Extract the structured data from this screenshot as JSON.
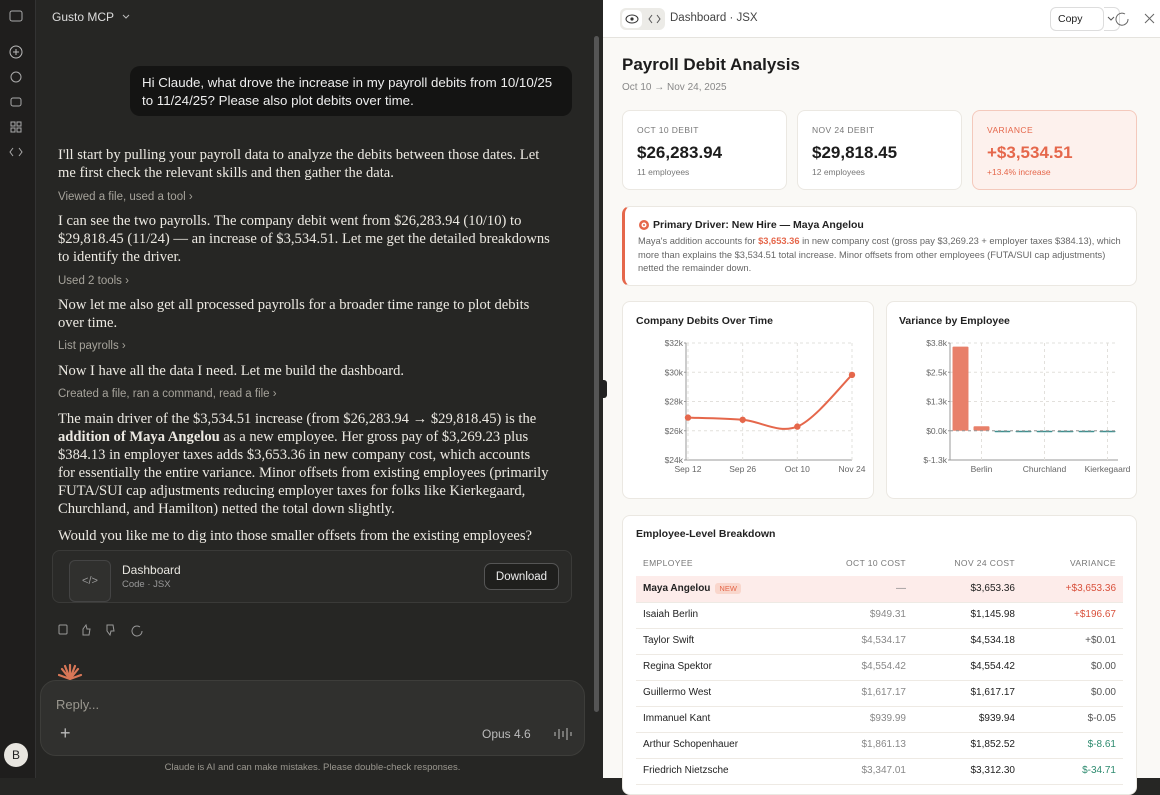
{
  "chat": {
    "workspace": "Gusto MCP",
    "user_message": "Hi Claude, what drove the increase in my payroll debits from 10/10/25 to 11/24/25? Please also plot debits over time.",
    "p1": "I'll start by pulling your payroll data to analyze the debits between those dates. Let me first check the relevant skills and then gather the data.",
    "step1": "Viewed a file, used a tool",
    "p2": "I can see the two payrolls. The company debit went from $26,283.94 (10/10) to $29,818.45 (11/24) — an increase of $3,534.51. Let me get the detailed breakdowns to identify the driver.",
    "step2": "Used 2 tools",
    "p3": "Now let me also get all processed payrolls for a broader time range to plot debits over time.",
    "step3": "List payrolls",
    "p4": "Now I have all the data I need. Let me build the dashboard.",
    "step4": "Created a file, ran a command, read a file",
    "p5": {
      "text_before": "The main driver of the $3,534.51 increase (from $26,283.94 → $29,818.45) is the ",
      "bold": "addition of Maya Angelou",
      "text_after": " as a new employee. Her gross pay of $3,269.23 plus $384.13 in employer taxes adds $3,653.36 in new company cost, which accounts for essentially the entire variance. Minor offsets from existing employees (primarily FUTA/SUI cap adjustments reducing employer taxes for folks like Kierkegaard, Churchland, and Hamilton) netted the total down slightly."
    },
    "p6": "Would you like me to dig into those smaller offsets from the existing employees?",
    "artifact": {
      "title": "Dashboard",
      "subtitle": "Code · JSX",
      "button": "Download"
    },
    "input": {
      "placeholder": "Reply...",
      "model": "Opus 4.6"
    },
    "disclaimer": "Claude is AI and can make mistakes. Please double-check responses.",
    "avatar": "B"
  },
  "artifact_panel": {
    "title": "Dashboard · JSX",
    "copy": "Copy"
  },
  "dashboard": {
    "title": "Payroll Debit Analysis",
    "subtitle": "Oct 10 → Nov 24, 2025",
    "kpis": [
      {
        "label": "OCT 10 DEBIT",
        "value": "$26,283.94",
        "note": "11 employees"
      },
      {
        "label": "NOV 24 DEBIT",
        "value": "$29,818.45",
        "note": "12 employees"
      },
      {
        "label": "VARIANCE",
        "value": "+$3,534.51",
        "note": "+13.4% increase",
        "highlight": true
      }
    ],
    "driver": {
      "title": "Primary Driver: New Hire — Maya Angelou",
      "text_before": "Maya's addition accounts for ",
      "highlight": "$3,653.36",
      "text_after": " in new company cost (gross pay $3,269.23 + employer taxes $384.13), which more than explains the $3,534.51 total increase. Minor offsets from other employees (FUTA/SUI cap adjustments) netted the remainder down."
    },
    "table": {
      "title": "Employee-Level Breakdown",
      "headers": [
        "EMPLOYEE",
        "OCT 10 COST",
        "NOV 24 COST",
        "VARIANCE"
      ],
      "rows": [
        {
          "employee": "Maya Angelou",
          "badge": "NEW",
          "oct_10": "—",
          "nov_24": "$3,653.36",
          "variance": "+$3,653.36",
          "variance_color": "#d9513c"
        },
        {
          "employee": "Isaiah Berlin",
          "oct_10": "$949.31",
          "nov_24": "$1,145.98",
          "variance": "+$196.67",
          "variance_color": "#d9513c"
        },
        {
          "employee": "Taylor Swift",
          "oct_10": "$4,534.17",
          "nov_24": "$4,534.18",
          "variance": "+$0.01",
          "variance_color": "#555555"
        },
        {
          "employee": "Regina Spektor",
          "oct_10": "$4,554.42",
          "nov_24": "$4,554.42",
          "variance": "$0.00",
          "variance_color": "#555555"
        },
        {
          "employee": "Guillermo West",
          "oct_10": "$1,617.17",
          "nov_24": "$1,617.17",
          "variance": "$0.00",
          "variance_color": "#555555"
        },
        {
          "employee": "Immanuel Kant",
          "oct_10": "$939.99",
          "nov_24": "$939.94",
          "variance": "$-0.05",
          "variance_color": "#555555"
        },
        {
          "employee": "Arthur Schopenhauer",
          "oct_10": "$1,861.13",
          "nov_24": "$1,852.52",
          "variance": "$-8.61",
          "variance_color": "#2e8b6f"
        },
        {
          "employee": "Friedrich Nietzsche",
          "oct_10": "$3,347.01",
          "nov_24": "$3,312.30",
          "variance": "$-34.71",
          "variance_color": "#2e8b6f"
        }
      ]
    }
  },
  "chart_data": [
    {
      "type": "line",
      "title": "Company Debits Over Time",
      "categories": [
        "Sep 12",
        "Sep 26",
        "Oct 10",
        "Nov 24"
      ],
      "values": [
        26900,
        26750,
        26283.94,
        29818.45
      ],
      "color": "#e5674b",
      "ylim": [
        24000,
        32000
      ],
      "yticks": [
        {
          "value": 24000,
          "label": "$24k"
        },
        {
          "value": 26000,
          "label": "$26k"
        },
        {
          "value": 28000,
          "label": "$28k"
        },
        {
          "value": 30000,
          "label": "$30k"
        },
        {
          "value": 32000,
          "label": "$32k"
        }
      ],
      "grid": true
    },
    {
      "type": "bar",
      "title": "Variance by Employee",
      "categories": [
        null,
        "Berlin",
        null,
        null,
        "Churchland",
        null,
        null,
        "Kierkegaard"
      ],
      "values": [
        3653.36,
        196.67,
        -0.05,
        -8.61,
        -20,
        -34.71,
        -40,
        -50
      ],
      "color": "#e8806a",
      "negative_color": "#3f8f8f",
      "ylim": [
        -1270,
        3810
      ],
      "yticks": [
        {
          "value": -1270,
          "label": "$-1.3k"
        },
        {
          "value": 0,
          "label": "$0.0k"
        },
        {
          "value": 1270,
          "label": "$1.3k"
        },
        {
          "value": 2540,
          "label": "$2.5k"
        },
        {
          "value": 3810,
          "label": "$3.8k"
        }
      ],
      "grid": true
    }
  ]
}
